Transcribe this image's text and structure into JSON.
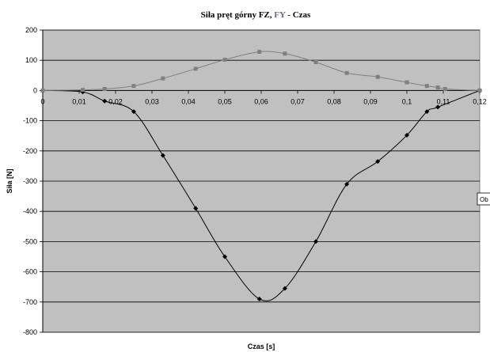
{
  "chart_data": {
    "type": "line",
    "title_parts": [
      "Siła pręt górny FZ, ",
      "FY",
      " - Czas"
    ],
    "xlabel": "Czas [s]",
    "ylabel": "Siła [N]",
    "xlim": [
      0,
      0.12
    ],
    "ylim": [
      -800,
      200
    ],
    "x_ticks": [
      0,
      0.01,
      0.02,
      0.03,
      0.04,
      0.05,
      0.06,
      0.07,
      0.08,
      0.09,
      0.1,
      0.11,
      0.12
    ],
    "x_tick_labels": [
      "0",
      "0,01",
      "0,02",
      "0,03",
      "0,04",
      "0,05",
      "0,06",
      "0,07",
      "0,08",
      "0,09",
      "0,1",
      "0,11",
      "0,12"
    ],
    "y_ticks": [
      200,
      100,
      0,
      -100,
      -200,
      -300,
      -400,
      -500,
      -600,
      -700,
      -800
    ],
    "y_tick_labels": [
      "200",
      "100",
      "0",
      "-100",
      "-200",
      "-300",
      "-400",
      "-500",
      "-600",
      "-700",
      "-800"
    ],
    "grid": true,
    "background": "#c0c0c0",
    "legend_fragment": "Ob",
    "series": [
      {
        "color": "#000000",
        "marker": "diamond",
        "x": [
          0,
          0.011,
          0.017,
          0.025,
          0.033,
          0.042,
          0.05,
          0.0595,
          0.0665,
          0.075,
          0.0835,
          0.092,
          0.1,
          0.1055,
          0.1085,
          0.12
        ],
        "y": [
          0,
          -5,
          -35,
          -70,
          -215,
          -390,
          -550,
          -690,
          -655,
          -500,
          -310,
          -235,
          -148,
          -70,
          -55,
          0
        ]
      },
      {
        "color": "#808080",
        "marker": "square",
        "x": [
          0,
          0.011,
          0.017,
          0.025,
          0.033,
          0.042,
          0.05,
          0.0595,
          0.0665,
          0.075,
          0.0835,
          0.092,
          0.1,
          0.1055,
          0.1085,
          0.1105,
          0.12
        ],
        "y": [
          0,
          2,
          5,
          15,
          40,
          72,
          102,
          128,
          122,
          94,
          58,
          45,
          27,
          15,
          10,
          5,
          0
        ]
      }
    ]
  }
}
